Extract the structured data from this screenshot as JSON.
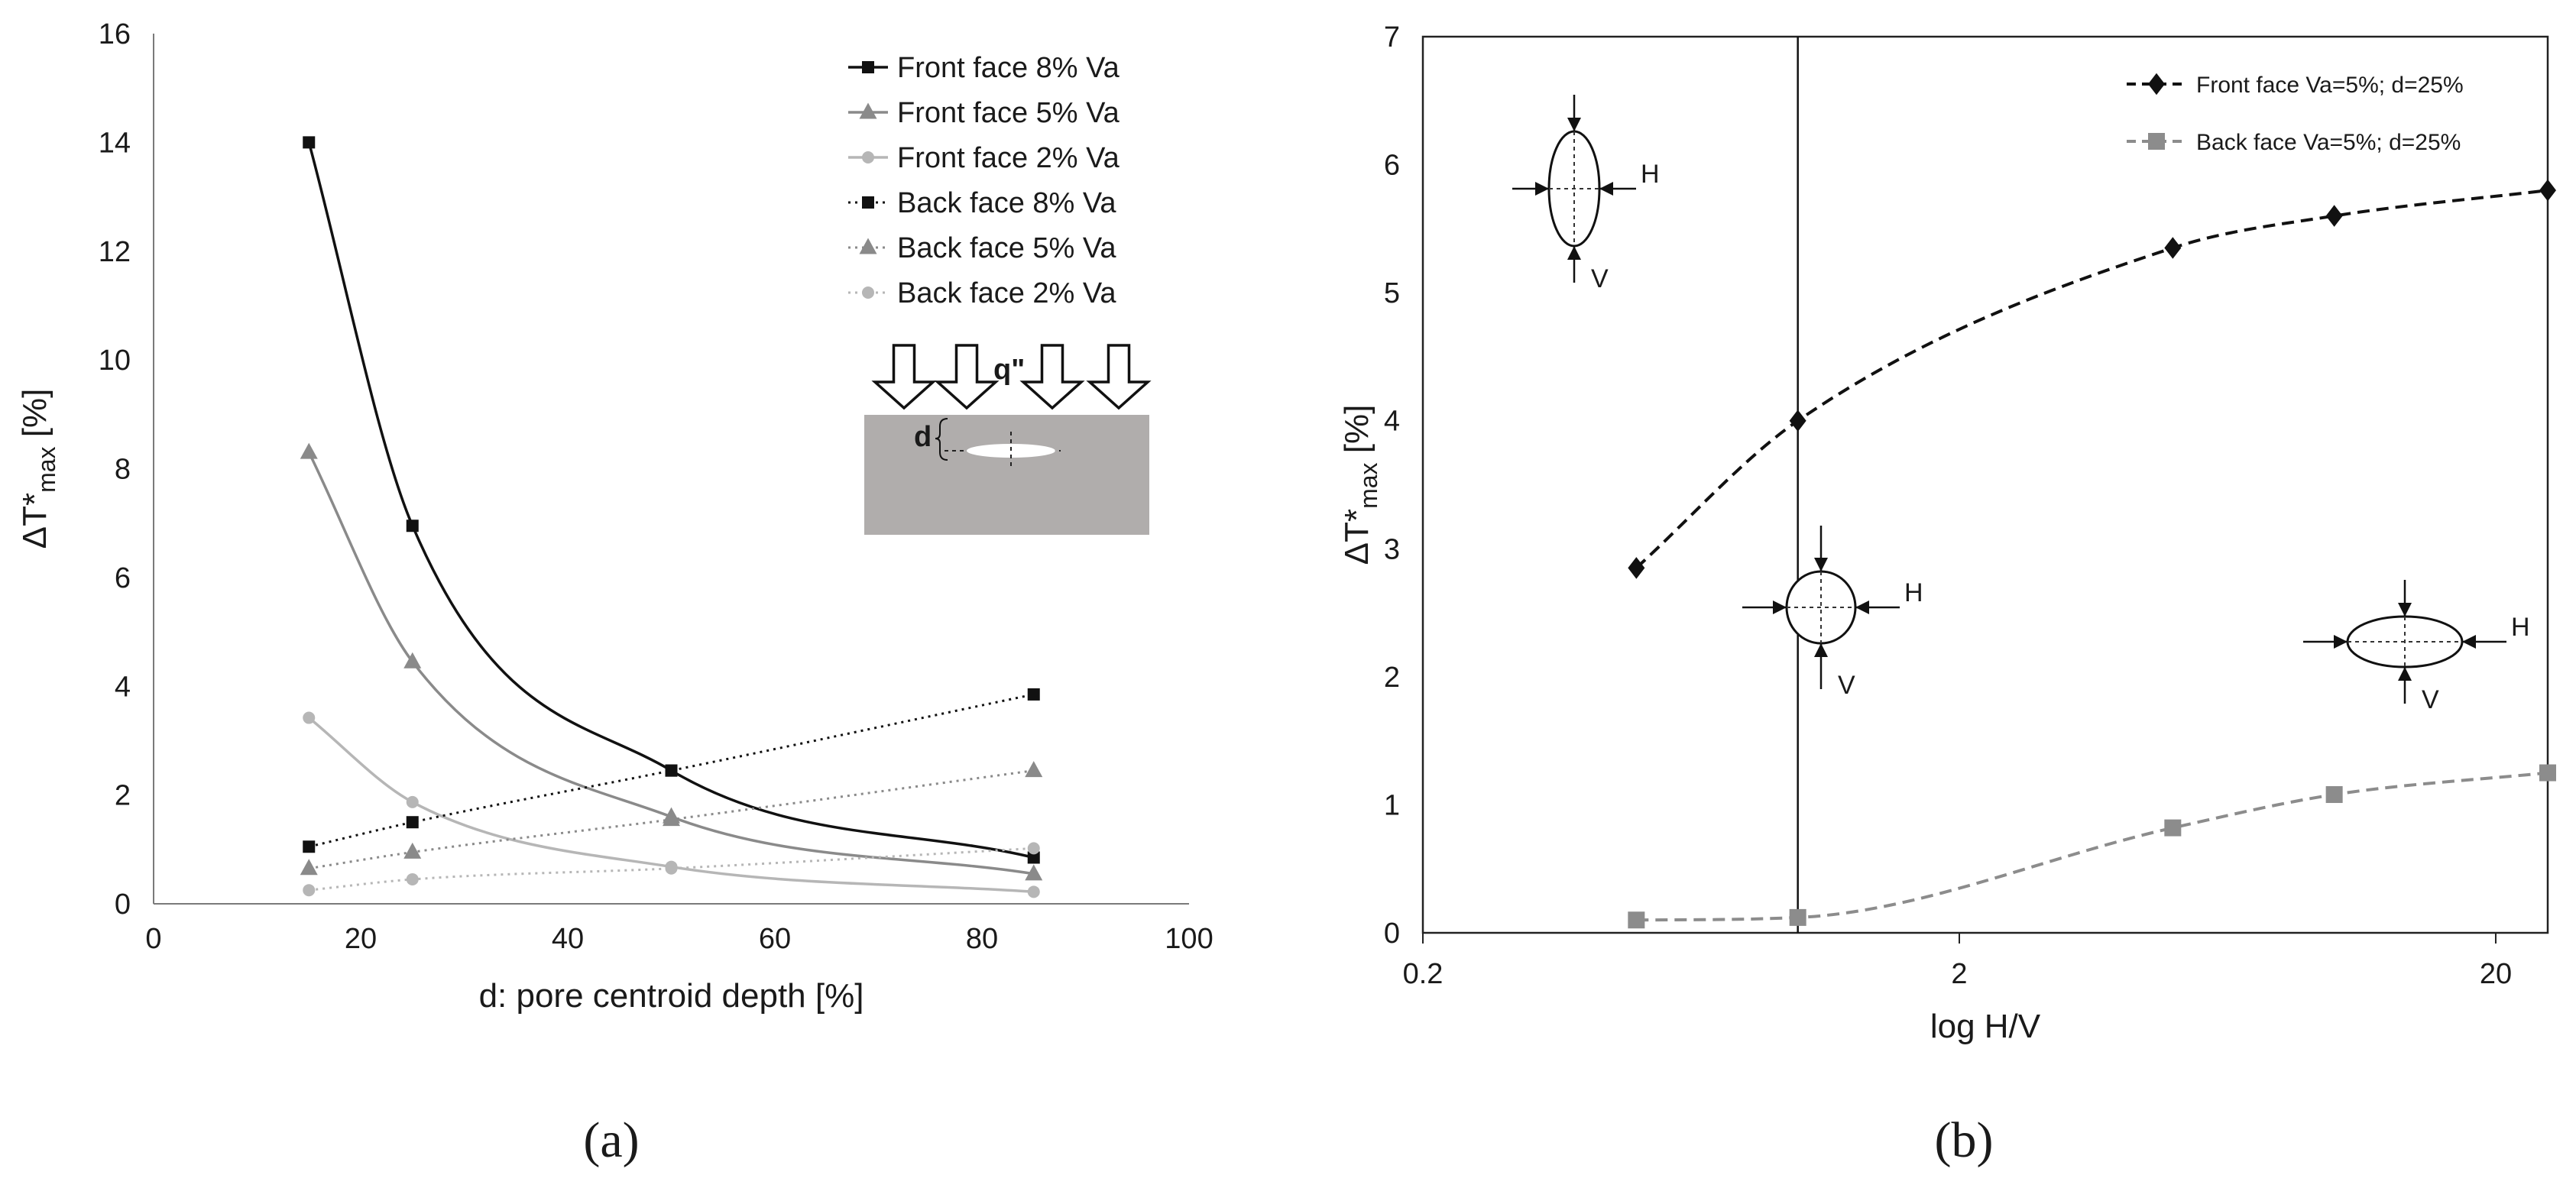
{
  "colors": {
    "black": "#111111",
    "gray": "#8a8a8a",
    "lightgray": "#b6b6b6",
    "inset_block": "#b0adac",
    "back_b": "#8c8c8c"
  },
  "chart_data": [
    {
      "type": "line",
      "panel_label": "(a)",
      "xlabel": "d: pore centroid depth [%]",
      "ylabel": {
        "base": "ΔT*",
        "sub": "max",
        "unit": " [%]"
      },
      "xlim": [
        0,
        100
      ],
      "ylim": [
        0,
        16
      ],
      "xticks": [
        "0",
        "20",
        "40",
        "60",
        "80",
        "100"
      ],
      "yticks": [
        "0",
        "2",
        "4",
        "6",
        "8",
        "10",
        "12",
        "14",
        "16"
      ],
      "grid": false,
      "legend_position": "top-right",
      "x": [
        15,
        25,
        50,
        85
      ],
      "series": [
        {
          "name": "Front face 8% Va",
          "values": [
            14.0,
            6.95,
            2.45,
            0.85
          ],
          "color": "#111111",
          "marker": "square",
          "style": "solid"
        },
        {
          "name": "Front face 5% Va",
          "values": [
            8.3,
            4.45,
            1.6,
            0.55
          ],
          "color": "#8a8a8a",
          "marker": "triangle",
          "style": "solid"
        },
        {
          "name": "Front face 2% Va",
          "values": [
            3.42,
            1.87,
            0.68,
            0.22
          ],
          "color": "#b6b6b6",
          "marker": "circle",
          "style": "solid"
        },
        {
          "name": "Back face 8% Va",
          "values": [
            1.05,
            1.5,
            2.45,
            3.85
          ],
          "color": "#111111",
          "marker": "square",
          "style": "dotted"
        },
        {
          "name": "Back face 5% Va",
          "values": [
            0.65,
            0.95,
            1.55,
            2.45
          ],
          "color": "#8a8a8a",
          "marker": "triangle",
          "style": "dotted"
        },
        {
          "name": "Back face 2% Va",
          "values": [
            0.25,
            0.45,
            0.65,
            1.02
          ],
          "color": "#b6b6b6",
          "marker": "circle",
          "style": "dotted"
        }
      ],
      "inset": {
        "flux_label": "q\"",
        "depth_label": "d"
      }
    },
    {
      "type": "line",
      "panel_label": "(b)",
      "xlabel": "log H/V",
      "ylabel": {
        "base": "ΔT*",
        "sub": "max",
        "unit": " [%]"
      },
      "xscale": "log",
      "xlim": [
        0.2,
        25
      ],
      "ylim": [
        0,
        7
      ],
      "xticks": [
        {
          "value": 0.2,
          "label": "0.2"
        },
        {
          "value": 2,
          "label": "2"
        },
        {
          "value": 20,
          "label": "20"
        }
      ],
      "yticks": [
        "0",
        "1",
        "2",
        "3",
        "4",
        "5",
        "6",
        "7"
      ],
      "grid": false,
      "legend_position": "top-right",
      "reference_line_x": 1,
      "x": [
        0.5,
        1,
        5,
        10,
        25
      ],
      "series": [
        {
          "name": "Front face Va=5%; d=25%",
          "values": [
            2.85,
            4.0,
            5.35,
            5.6,
            5.8
          ],
          "color": "#111111",
          "marker": "diamond",
          "style": "dashed"
        },
        {
          "name": "Back face Va=5%; d=25%",
          "values": [
            0.1,
            0.12,
            0.82,
            1.08,
            1.25
          ],
          "color": "#8c8c8c",
          "marker": "square",
          "style": "dashed"
        }
      ],
      "diagram_labels": {
        "h": "H",
        "v": "V"
      }
    }
  ]
}
